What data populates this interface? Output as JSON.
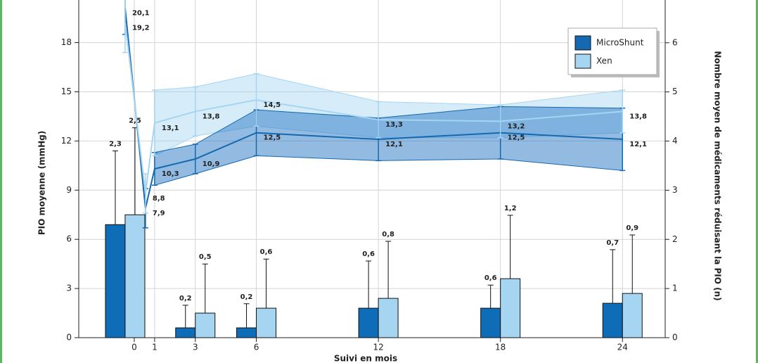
{
  "chart_data": {
    "type": "combo",
    "xlabel": "Suivi en mois",
    "ylabel": "PIO moyenne (mmHg)",
    "y2label": "Nombre moyen de médicaments réduisant la PIO (n)",
    "xlim": [
      -2.73,
      26.1
    ],
    "xticks": [
      0,
      1,
      3,
      6,
      12,
      18,
      24
    ],
    "ylim": [
      0,
      20.6
    ],
    "yticks": [
      0,
      3,
      6,
      9,
      12,
      15,
      18
    ],
    "y2lim": [
      0,
      6.87
    ],
    "y2ticks": [
      0,
      1,
      2,
      3,
      4,
      5,
      6
    ],
    "grid": true,
    "legend": "upper right",
    "series": [
      {
        "name": "MicroShunt",
        "color": "#1469b0",
        "x": [
          -0.45,
          0.55,
          1,
          3,
          6,
          12,
          18,
          24
        ],
        "values": [
          20.1,
          7.9,
          10.3,
          10.9,
          12.5,
          12.1,
          12.5,
          12.1
        ],
        "error": [
          1.6,
          1.2,
          1.0,
          0.9,
          1.4,
          1.3,
          1.6,
          1.9
        ],
        "value_labels": [
          "20,1",
          "7,9",
          "10,3",
          "10,9",
          "12,5",
          "12,1",
          "12,5",
          "12,1"
        ]
      },
      {
        "name": "Xen",
        "color": "#a6d5f2",
        "x": [
          -0.45,
          0.55,
          1,
          3,
          6,
          12,
          18,
          24
        ],
        "values": [
          19.2,
          8.8,
          13.1,
          13.8,
          14.5,
          13.3,
          13.2,
          13.8
        ],
        "error": [
          1.8,
          1.2,
          2.0,
          1.5,
          1.6,
          1.1,
          1.0,
          1.3
        ],
        "value_labels": [
          "19,2",
          "8,8",
          "13,1",
          "13,8",
          "14,5",
          "13,3",
          "13,2",
          "13,8"
        ]
      }
    ],
    "bar_series": [
      {
        "color": "#0f6cb6",
        "axis": "y2",
        "x": [
          -0.45,
          3,
          6,
          12,
          18,
          24
        ],
        "values": [
          2.3,
          0.2,
          0.2,
          0.6,
          0.6,
          0.7
        ],
        "error": [
          1.5,
          0.46,
          0.49,
          0.96,
          0.47,
          1.09
        ],
        "value_labels": [
          "2,3",
          "0,2",
          "0,2",
          "0,6",
          "0,6",
          "0,7"
        ]
      },
      {
        "color": "#a6d5f2",
        "axis": "y2",
        "x": [
          -0.45,
          3,
          6,
          12,
          18,
          24
        ],
        "values": [
          2.5,
          0.5,
          0.6,
          0.8,
          1.2,
          0.9
        ],
        "error": [
          1.77,
          1.0,
          1.0,
          1.16,
          1.29,
          1.19
        ],
        "value_labels": [
          "2,5",
          "0,5",
          "0,6",
          "0,8",
          "1,2",
          "0,9"
        ]
      }
    ]
  }
}
